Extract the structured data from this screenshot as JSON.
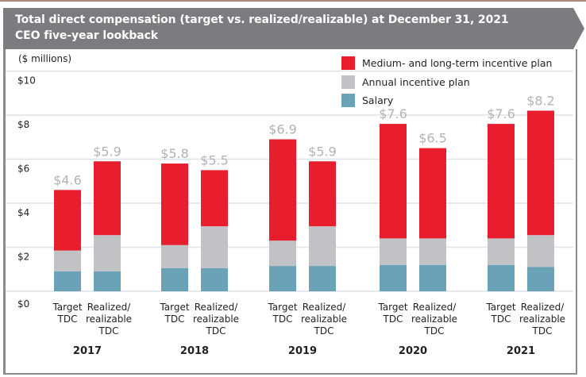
{
  "header": {
    "title_line1": "Total direct compensation (target vs. realized/realizable) at December 31, 2021",
    "title_line2": "CEO five-year lookback"
  },
  "chart_data": {
    "type": "bar",
    "stacked": true,
    "title": "Total direct compensation (target vs. realized/realizable) at December 31, 2021 — CEO five-year lookback",
    "ylabel": "($ millions)",
    "xlabel": "",
    "ylim": [
      0,
      10
    ],
    "yticks": [
      0,
      2,
      4,
      6,
      8,
      10
    ],
    "ytick_labels": [
      "$0",
      "$2",
      "$4",
      "$6",
      "$8",
      "$10"
    ],
    "grid": true,
    "legend_position": "top-right",
    "groups": [
      "2017",
      "2018",
      "2019",
      "2020",
      "2021"
    ],
    "bar_types": [
      {
        "key": "target",
        "label_lines": [
          "Target",
          "TDC"
        ]
      },
      {
        "key": "realized",
        "label_lines": [
          "Realized/",
          "realizable",
          "TDC"
        ]
      }
    ],
    "series": [
      {
        "name": "Salary",
        "color": "#6aa2b8",
        "values": [
          [
            0.9,
            0.9
          ],
          [
            1.05,
            1.05
          ],
          [
            1.15,
            1.15
          ],
          [
            1.2,
            1.2
          ],
          [
            1.2,
            1.1
          ]
        ]
      },
      {
        "name": "Annual incentive plan",
        "color": "#c1c2c6",
        "values": [
          [
            0.95,
            1.65
          ],
          [
            1.05,
            1.9
          ],
          [
            1.15,
            1.8
          ],
          [
            1.2,
            1.2
          ],
          [
            1.2,
            1.45
          ]
        ]
      },
      {
        "name": "Medium- and long-term incentive plan",
        "color": "#e81e2f",
        "values": [
          [
            2.75,
            3.35
          ],
          [
            3.7,
            2.55
          ],
          [
            4.6,
            2.95
          ],
          [
            5.2,
            4.1
          ],
          [
            5.2,
            5.65
          ]
        ]
      }
    ],
    "totals": [
      [
        4.6,
        5.9
      ],
      [
        5.8,
        5.5
      ],
      [
        6.9,
        5.9
      ],
      [
        7.6,
        6.5
      ],
      [
        7.6,
        8.2
      ]
    ],
    "total_labels": [
      [
        "$4.6",
        "$5.9"
      ],
      [
        "$5.8",
        "$5.5"
      ],
      [
        "$6.9",
        "$5.9"
      ],
      [
        "$7.6",
        "$6.5"
      ],
      [
        "$7.6",
        "$8.2"
      ]
    ],
    "total_label_color": "#b1b3b8"
  },
  "legend": {
    "items": [
      {
        "label": "Medium- and long-term incentive plan",
        "color": "#e81e2f"
      },
      {
        "label": "Annual incentive plan",
        "color": "#c1c2c6"
      },
      {
        "label": "Salary",
        "color": "#6aa2b8"
      }
    ]
  }
}
